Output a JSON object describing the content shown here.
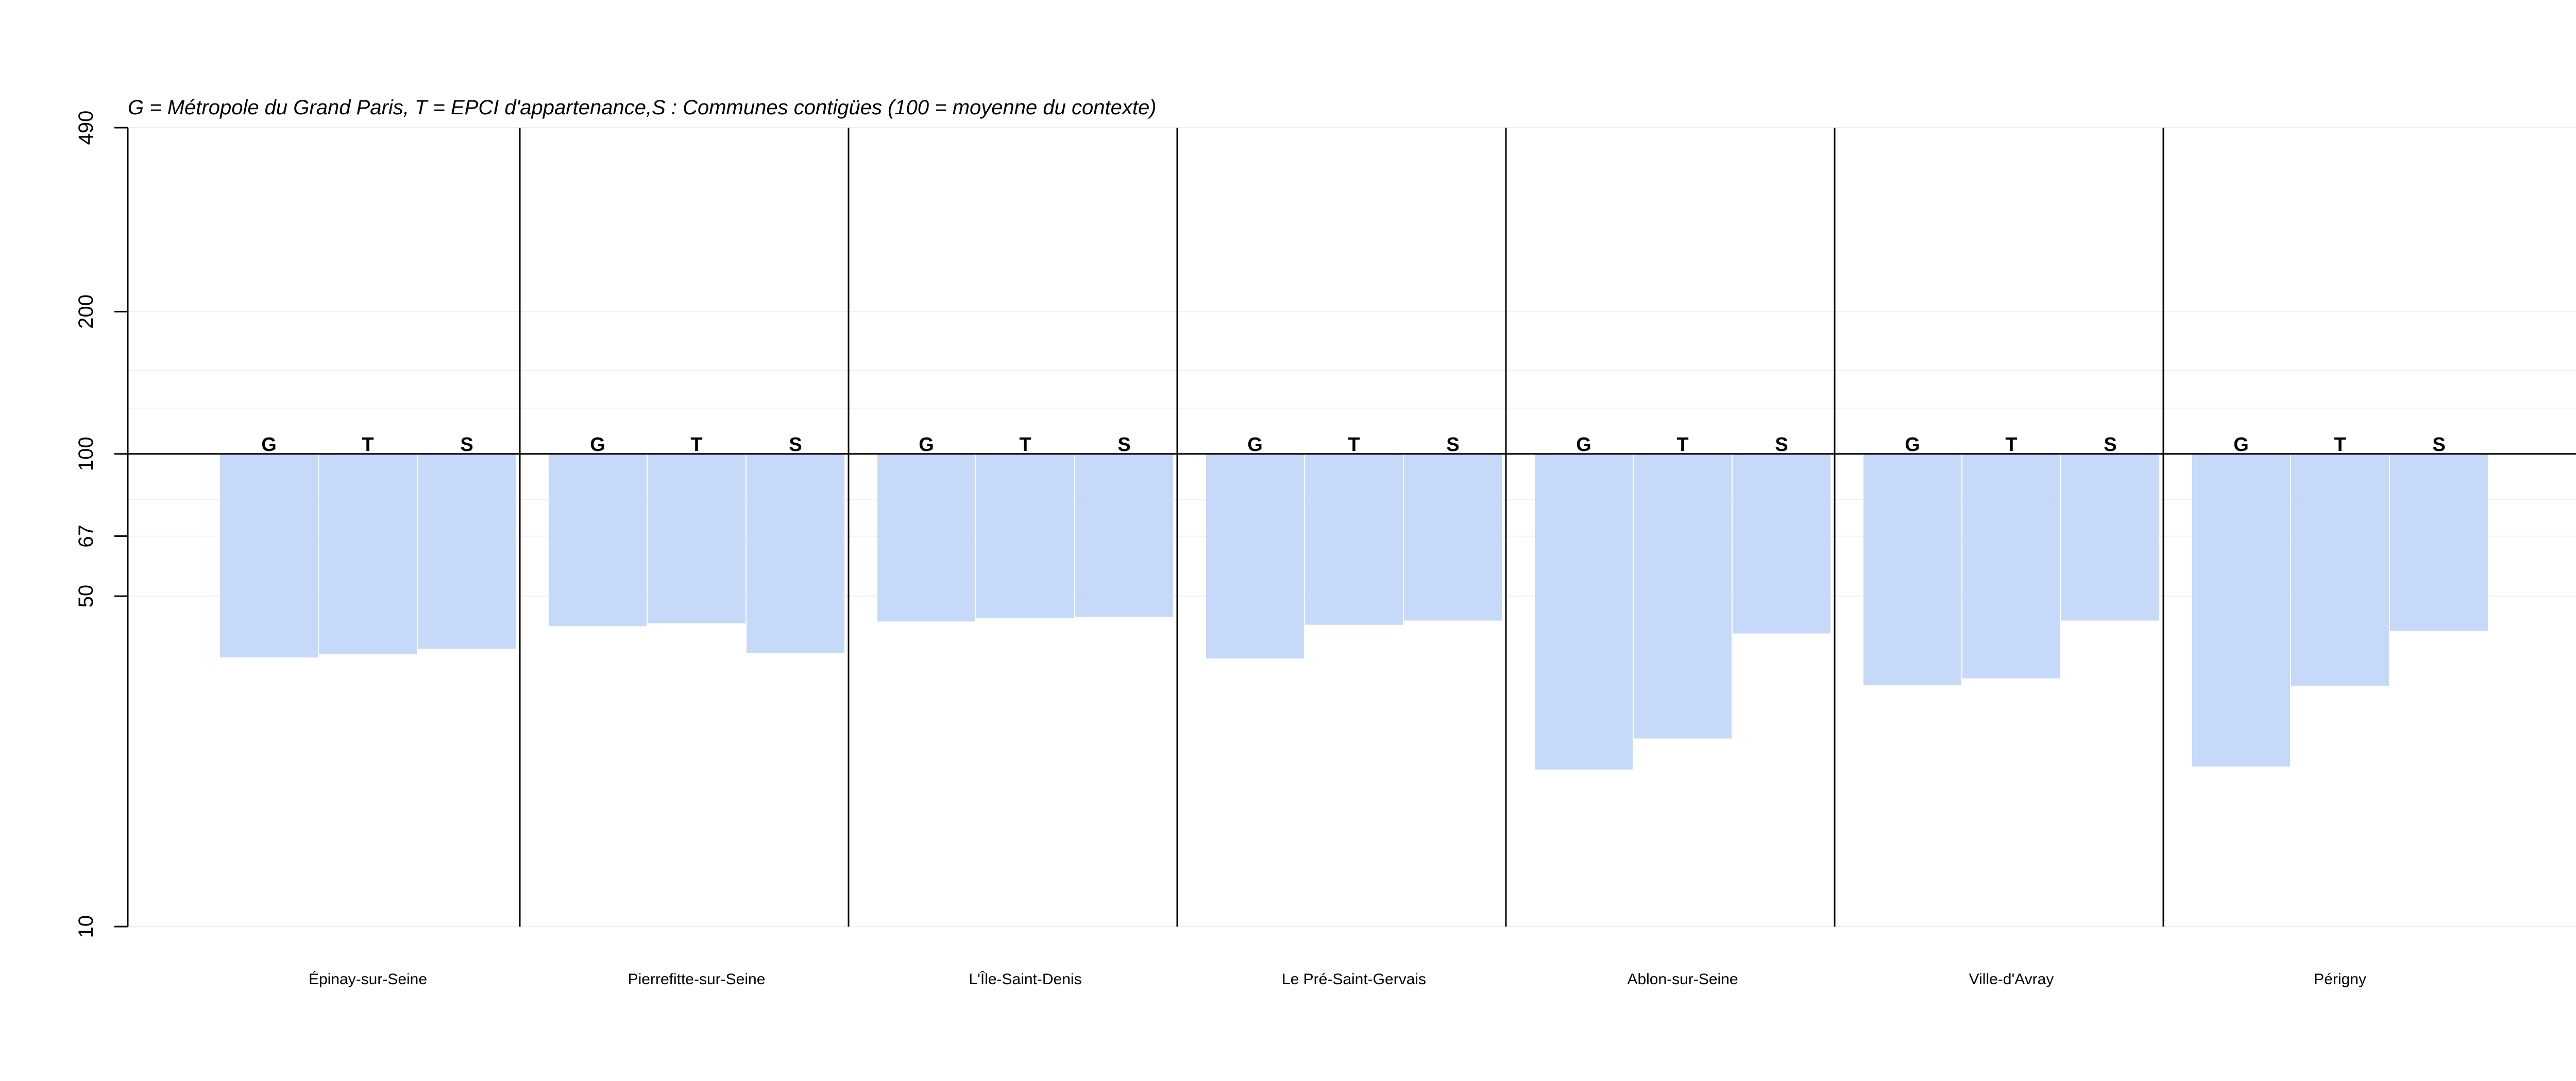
{
  "chart_data": {
    "type": "bar",
    "title": "G = Métropole du Grand Paris, T = EPCI d'appartenance,S : Communes contigües (100 = moyenne du contexte)",
    "xlabel": "",
    "ylabel": "",
    "scale": "log",
    "ylim": [
      10,
      490
    ],
    "baseline": 100,
    "yticks": [
      10,
      50,
      67,
      100,
      200,
      490
    ],
    "gridlines": [
      10,
      50,
      67,
      80,
      100,
      125,
      150,
      200,
      490
    ],
    "bar_color": "#c6d9f8",
    "categories": [
      "Épinay-sur-Seine",
      "Pierrefitte-sur-Seine",
      "L'Île-Saint-Denis",
      "Le Pré-Saint-Gervais",
      "Ablon-sur-Seine",
      "Ville-d'Avray",
      "Périgny"
    ],
    "series": [
      {
        "name": "G",
        "values": [
          37.1,
          43.2,
          44.2,
          36.9,
          21.5,
          32.4,
          21.8
        ]
      },
      {
        "name": "T",
        "values": [
          37.7,
          43.8,
          44.9,
          43.5,
          25.0,
          33.5,
          32.3
        ]
      },
      {
        "name": "S",
        "values": [
          38.7,
          37.9,
          45.2,
          44.4,
          41.7,
          44.4,
          42.2
        ]
      }
    ]
  }
}
